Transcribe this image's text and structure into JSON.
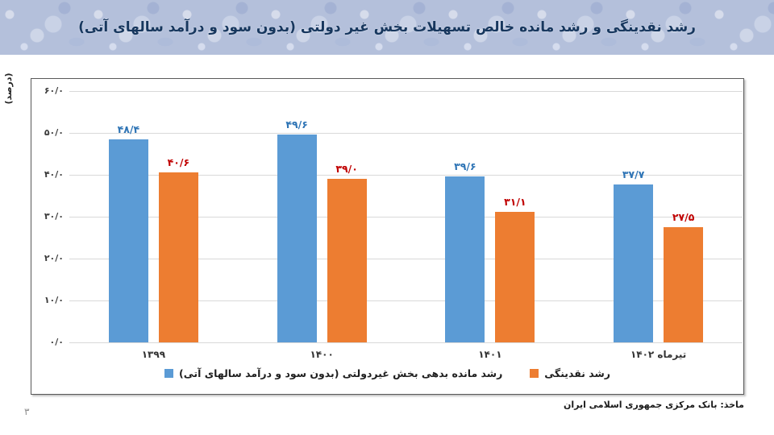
{
  "title": "رشد نقدینگی و رشد مانده خالص تسهیلات بخش غیر دولتی (بدون سود و درآمد سالهای آتی)",
  "y_axis_title": "(درصد)",
  "source": "ماخذ: بانک مرکزی جمهوری اسلامی ایران",
  "page_number": "۳",
  "colors": {
    "header_bg": "#b4c0db",
    "title_text": "#17375E",
    "series_blue": "#5B9BD5",
    "series_orange": "#ED7D31",
    "label_blue": "#2E74B5",
    "label_red": "#C00000",
    "gridline": "#d9d9d9",
    "chart_border": "#595959"
  },
  "chart_data": {
    "type": "bar",
    "title": "رشد نقدینگی و رشد مانده خالص تسهیلات بخش غیر دولتی (بدون سود و درآمد سالهای آتی)",
    "ylabel": "(درصد)",
    "xlabel": "",
    "ylim": [
      0,
      60
    ],
    "grid": true,
    "legend_position": "bottom",
    "categories": [
      "۱۳۹۹",
      "۱۴۰۰",
      "۱۴۰۱",
      "تیرماه ۱۴۰۲"
    ],
    "categories_latin": [
      "1399",
      "1400",
      "1401",
      "Tir 1402"
    ],
    "y_ticks": [
      {
        "value": 60,
        "label": "۶۰/۰"
      },
      {
        "value": 50,
        "label": "۵۰/۰"
      },
      {
        "value": 40,
        "label": "۴۰/۰"
      },
      {
        "value": 30,
        "label": "۳۰/۰"
      },
      {
        "value": 20,
        "label": "۲۰/۰"
      },
      {
        "value": 10,
        "label": "۱۰/۰"
      },
      {
        "value": 0,
        "label": "۰/۰"
      }
    ],
    "series": [
      {
        "name": "رشد مانده بدهی بخش غیردولتی (بدون سود و درآمد سالهای آتی)",
        "color": "#5B9BD5",
        "label_color": "#2E74B5",
        "values": [
          48.4,
          49.6,
          39.6,
          37.7
        ],
        "labels_fa": [
          "۴۸/۴",
          "۴۹/۶",
          "۳۹/۶",
          "۳۷/۷"
        ]
      },
      {
        "name": "رشد نقدینگی",
        "color": "#ED7D31",
        "label_color": "#C00000",
        "values": [
          40.6,
          39.0,
          31.1,
          27.5
        ],
        "labels_fa": [
          "۴۰/۶",
          "۳۹/۰",
          "۳۱/۱",
          "۲۷/۵"
        ]
      }
    ]
  }
}
